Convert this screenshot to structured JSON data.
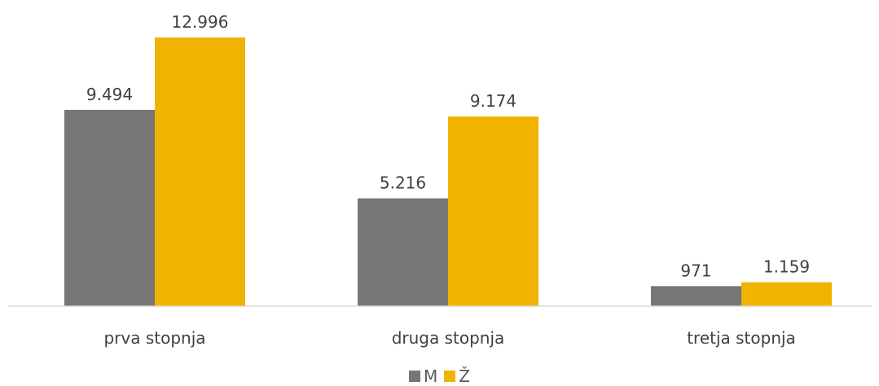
{
  "chart_data": {
    "type": "bar",
    "categories": [
      "prva stopnja",
      "druga stopnja",
      "tretja stopnja"
    ],
    "series": [
      {
        "name": "M",
        "values": [
          9494,
          5216,
          971
        ],
        "labels": [
          "9.494",
          "5.216",
          "971"
        ],
        "color": "#767676"
      },
      {
        "name": "Ž",
        "values": [
          12996,
          9174,
          1159
        ],
        "labels": [
          "12.996",
          "9.174",
          "1.159"
        ],
        "color": "#f0b400"
      }
    ],
    "title": "",
    "xlabel": "",
    "ylabel": "",
    "ylim": [
      0,
      12996
    ],
    "grid": false,
    "legend": "bottom",
    "axis_color": "#d9d9d9"
  }
}
